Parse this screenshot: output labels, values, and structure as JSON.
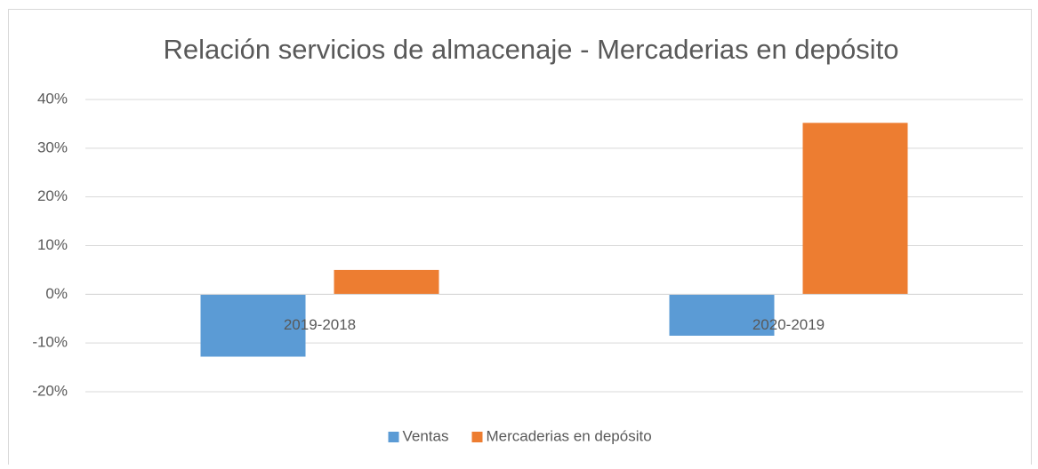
{
  "chart_data": {
    "type": "bar",
    "title": "Relación servicios de almacenaje - Mercaderias en depósito",
    "categories": [
      "2019-2018",
      "2020-2019"
    ],
    "series": [
      {
        "name": "Ventas",
        "color": "#5b9bd5",
        "values": [
          -12.8,
          -8.5
        ]
      },
      {
        "name": "Mercaderias en depósito",
        "color": "#ed7d31",
        "values": [
          5,
          35.2
        ]
      }
    ],
    "ylim": [
      -20,
      40
    ],
    "yticks": [
      {
        "value": -20,
        "label": "-20%"
      },
      {
        "value": -10,
        "label": "-10%"
      },
      {
        "value": 0,
        "label": "0%"
      },
      {
        "value": 10,
        "label": "10%"
      },
      {
        "value": 20,
        "label": "20%"
      },
      {
        "value": 30,
        "label": "30%"
      },
      {
        "value": 40,
        "label": "40%"
      }
    ],
    "grid": true,
    "legend": "bottom"
  }
}
